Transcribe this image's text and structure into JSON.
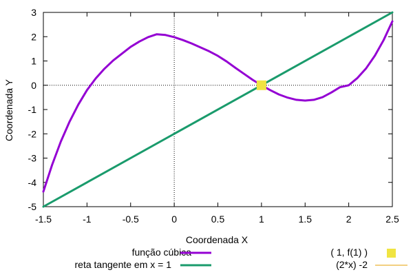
{
  "chart_data": {
    "type": "line",
    "xlabel": "Coordenada X",
    "ylabel": "Coordenada Y",
    "xlim": [
      -1.5,
      2.5
    ],
    "ylim": [
      -5,
      3
    ],
    "x_ticks": [
      -1.5,
      -1,
      -0.5,
      0,
      0.5,
      1,
      1.5,
      2,
      2.5
    ],
    "y_ticks": [
      -5,
      -4,
      -3,
      -2,
      -1,
      0,
      1,
      2,
      3
    ],
    "x_tick_labels": [
      "-1.5",
      "-1",
      "-0.5",
      "0",
      "0.5",
      "1",
      "1.5",
      "2",
      "2.5"
    ],
    "y_tick_labels": [
      "-5",
      "-4",
      "-3",
      "-2",
      "-1",
      "0",
      "1",
      "2",
      "3"
    ],
    "zero_axes": true,
    "grid": false,
    "legend_placement": "below",
    "series": [
      {
        "name": "função cúbica",
        "kind": "line",
        "color": "#9400d3",
        "x": [
          -1.5,
          -1.4,
          -1.3,
          -1.2,
          -1.1,
          -1.0,
          -0.9,
          -0.8,
          -0.7,
          -0.6,
          -0.5,
          -0.4,
          -0.3,
          -0.2,
          -0.1,
          0.0,
          0.1,
          0.2,
          0.3,
          0.4,
          0.5,
          0.6,
          0.7,
          0.8,
          0.9,
          1.0,
          1.1,
          1.2,
          1.3,
          1.4,
          1.5,
          1.6,
          1.7,
          1.8,
          1.9,
          2.0,
          2.1,
          2.2,
          2.3,
          2.4,
          2.5
        ],
        "y": [
          -4.38,
          -3.28,
          -2.32,
          -1.5,
          -0.8,
          -0.2,
          0.28,
          0.68,
          1.02,
          1.3,
          1.58,
          1.8,
          1.98,
          2.1,
          2.07,
          1.98,
          1.86,
          1.72,
          1.56,
          1.4,
          1.21,
          0.98,
          0.72,
          0.47,
          0.22,
          0.0,
          -0.2,
          -0.38,
          -0.51,
          -0.6,
          -0.63,
          -0.6,
          -0.49,
          -0.3,
          -0.08,
          0.0,
          0.3,
          0.7,
          1.22,
          1.86,
          2.63
        ]
      },
      {
        "name": "reta tangente em x = 1",
        "kind": "line",
        "color": "#1a9b6c",
        "x": [
          -1.5,
          2.5
        ],
        "y": [
          -5,
          3
        ]
      },
      {
        "name": "( 1, f(1) )",
        "kind": "point",
        "color": "#f0e442",
        "x": [
          1
        ],
        "y": [
          0
        ]
      },
      {
        "name": "(2*x) -2",
        "kind": "line",
        "color": "#e69f00",
        "x": [],
        "y": []
      }
    ]
  }
}
